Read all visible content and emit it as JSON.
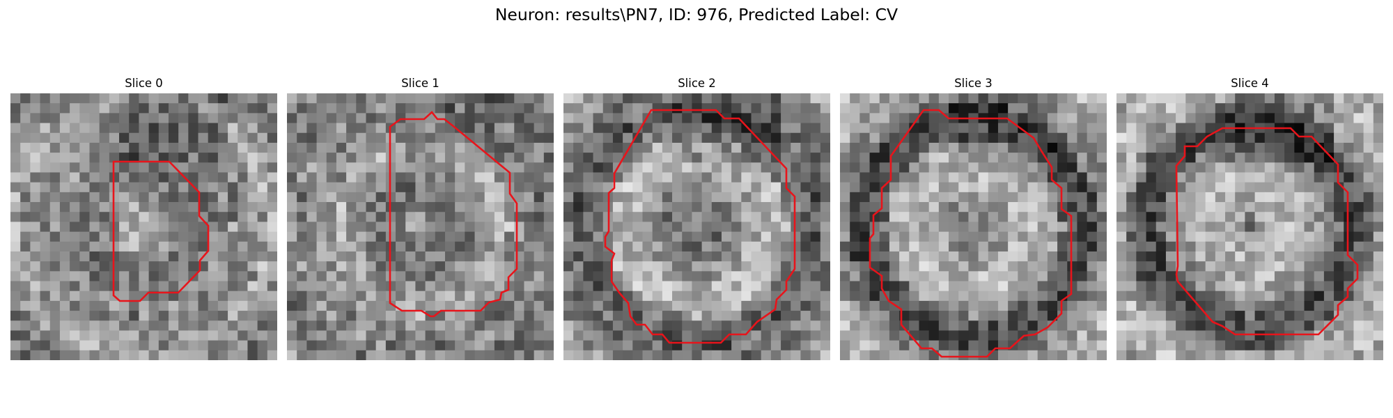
{
  "figure": {
    "title": "Neuron: results\\PN7, ID: 976, Predicted Label: CV"
  },
  "colors": {
    "contour": "#e8141b",
    "background": "#ffffff"
  },
  "slices": [
    {
      "title": "Slice 0"
    },
    {
      "title": "Slice 1"
    },
    {
      "title": "Slice 2"
    },
    {
      "title": "Slice 3"
    },
    {
      "title": "Slice 4"
    }
  ]
}
